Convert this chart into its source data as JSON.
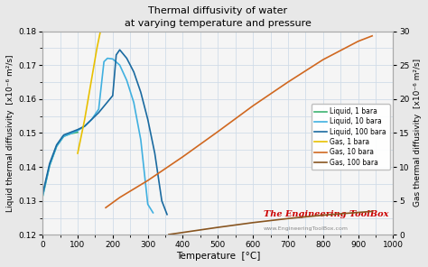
{
  "title": "Thermal diffusivity of water",
  "subtitle": "at varying temperature and pressure",
  "xlabel": "Temperature  [°C]",
  "ylabel_left": "Liquid thermal diffusivity  [x10⁻⁶ m²/s]",
  "ylabel_right": "Gas thermal diffusivity  [x10⁻⁶ m²/s]",
  "xlim": [
    0,
    1000
  ],
  "ylim_left": [
    0.12,
    0.18
  ],
  "ylim_right": [
    0,
    30
  ],
  "yticks_left": [
    0.12,
    0.13,
    0.14,
    0.15,
    0.16,
    0.17,
    0.18
  ],
  "yticks_right": [
    0,
    5,
    10,
    15,
    20,
    25,
    30
  ],
  "xticks": [
    0,
    100,
    200,
    300,
    400,
    500,
    600,
    700,
    800,
    900,
    1000
  ],
  "bg_color": "#e8e8e8",
  "plot_bg_color": "#f5f5f5",
  "grid_color": "#d0dce8",
  "liquid_1bara": {
    "T": [
      0,
      20,
      40,
      60,
      80,
      100
    ],
    "alpha": [
      0.1313,
      0.1404,
      0.1461,
      0.149,
      0.1498,
      0.1502
    ],
    "color": "#3cb371",
    "label": "Liquid, 1 bara",
    "lw": 1.2
  },
  "liquid_10bara": {
    "T": [
      0,
      20,
      40,
      60,
      80,
      100,
      120,
      140,
      160,
      175,
      185,
      200,
      220,
      240,
      260,
      280,
      300,
      315
    ],
    "alpha": [
      0.1313,
      0.1404,
      0.1461,
      0.149,
      0.1498,
      0.1507,
      0.152,
      0.154,
      0.157,
      0.171,
      0.172,
      0.1718,
      0.17,
      0.1655,
      0.159,
      0.148,
      0.129,
      0.1265
    ],
    "color": "#40b0e0",
    "label": "Liquid, 10 bara",
    "lw": 1.2
  },
  "liquid_100bara": {
    "T": [
      0,
      20,
      40,
      60,
      80,
      100,
      120,
      140,
      160,
      180,
      200,
      210,
      220,
      240,
      260,
      280,
      300,
      320,
      340,
      355
    ],
    "alpha": [
      0.132,
      0.141,
      0.1465,
      0.1494,
      0.1502,
      0.151,
      0.152,
      0.154,
      0.156,
      0.1585,
      0.161,
      0.173,
      0.1745,
      0.172,
      0.168,
      0.162,
      0.154,
      0.144,
      0.13,
      0.126
    ],
    "color": "#1a6aa0",
    "label": "Liquid, 100 bara",
    "lw": 1.2
  },
  "gas_1bara": {
    "T": [
      100,
      120,
      140,
      155,
      165
    ],
    "alpha_gas": [
      12.0,
      17.0,
      23.0,
      27.5,
      30.0
    ],
    "color": "#e8c000",
    "label": "Gas, 1 bara",
    "lw": 1.2
  },
  "gas_10bara": {
    "T": [
      180,
      220,
      300,
      400,
      500,
      600,
      700,
      800,
      900,
      940
    ],
    "alpha_gas": [
      4.0,
      5.5,
      8.0,
      11.5,
      15.2,
      19.0,
      22.5,
      25.8,
      28.5,
      29.3
    ],
    "color": "#d06820",
    "label": "Gas, 10 bara",
    "lw": 1.2
  },
  "gas_100bara": {
    "T": [
      360,
      420,
      500,
      600,
      700,
      800,
      900,
      940
    ],
    "alpha_gas": [
      0.05,
      0.5,
      1.1,
      1.8,
      2.4,
      2.9,
      3.3,
      3.45
    ],
    "color": "#885520",
    "label": "Gas, 100 bara",
    "lw": 1.2
  },
  "watermark_text": "The Engineering ToolBox",
  "watermark_url": "www.EngineeringToolBox.com",
  "watermark_color": "#cc0000"
}
